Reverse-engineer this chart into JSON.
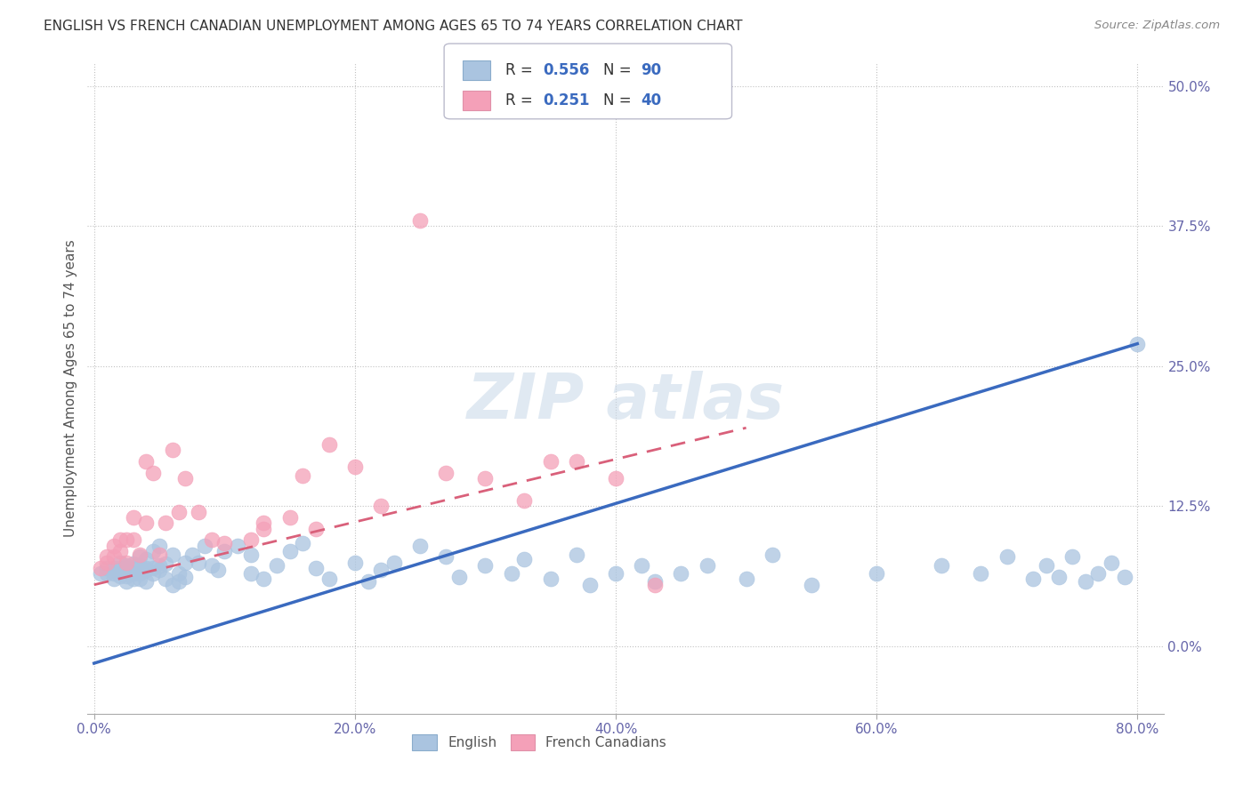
{
  "title": "ENGLISH VS FRENCH CANADIAN UNEMPLOYMENT AMONG AGES 65 TO 74 YEARS CORRELATION CHART",
  "source": "Source: ZipAtlas.com",
  "ylabel": "Unemployment Among Ages 65 to 74 years",
  "xlim": [
    -0.005,
    0.82
  ],
  "ylim": [
    -0.06,
    0.52
  ],
  "xticks": [
    0.0,
    0.2,
    0.4,
    0.6,
    0.8
  ],
  "xticklabels": [
    "0.0%",
    "20.0%",
    "40.0%",
    "60.0%",
    "80.0%"
  ],
  "yticks": [
    0.0,
    0.125,
    0.25,
    0.375,
    0.5
  ],
  "yticklabels": [
    "0.0%",
    "12.5%",
    "25.0%",
    "37.5%",
    "50.0%"
  ],
  "english_color": "#aac4e0",
  "french_color": "#f4a0b8",
  "english_line_color": "#3a6abf",
  "french_line_color": "#d9607a",
  "english_R": 0.556,
  "english_N": 90,
  "french_R": 0.251,
  "french_N": 40,
  "legend_label_english": "English",
  "legend_label_french": "French Canadians",
  "eng_x": [
    0.005,
    0.01,
    0.01,
    0.015,
    0.015,
    0.015,
    0.02,
    0.02,
    0.02,
    0.02,
    0.025,
    0.025,
    0.025,
    0.025,
    0.025,
    0.03,
    0.03,
    0.03,
    0.03,
    0.035,
    0.035,
    0.035,
    0.035,
    0.04,
    0.04,
    0.04,
    0.04,
    0.045,
    0.045,
    0.045,
    0.05,
    0.05,
    0.05,
    0.055,
    0.055,
    0.06,
    0.06,
    0.065,
    0.065,
    0.07,
    0.07,
    0.075,
    0.08,
    0.085,
    0.09,
    0.095,
    0.1,
    0.11,
    0.12,
    0.12,
    0.13,
    0.14,
    0.15,
    0.16,
    0.17,
    0.18,
    0.2,
    0.21,
    0.22,
    0.23,
    0.25,
    0.27,
    0.28,
    0.3,
    0.32,
    0.33,
    0.35,
    0.37,
    0.38,
    0.4,
    0.42,
    0.43,
    0.45,
    0.47,
    0.5,
    0.52,
    0.55,
    0.6,
    0.65,
    0.68,
    0.7,
    0.72,
    0.73,
    0.74,
    0.75,
    0.76,
    0.77,
    0.78,
    0.79,
    0.8
  ],
  "eng_y": [
    0.065,
    0.065,
    0.07,
    0.065,
    0.07,
    0.06,
    0.067,
    0.07,
    0.063,
    0.075,
    0.068,
    0.063,
    0.072,
    0.07,
    0.058,
    0.07,
    0.074,
    0.065,
    0.06,
    0.072,
    0.065,
    0.08,
    0.06,
    0.07,
    0.068,
    0.078,
    0.058,
    0.07,
    0.065,
    0.085,
    0.072,
    0.068,
    0.09,
    0.074,
    0.06,
    0.055,
    0.082,
    0.065,
    0.058,
    0.075,
    0.062,
    0.082,
    0.075,
    0.09,
    0.072,
    0.068,
    0.085,
    0.09,
    0.065,
    0.082,
    0.06,
    0.072,
    0.085,
    0.092,
    0.07,
    0.06,
    0.075,
    0.058,
    0.068,
    0.075,
    0.09,
    0.08,
    0.062,
    0.072,
    0.065,
    0.078,
    0.06,
    0.082,
    0.055,
    0.065,
    0.072,
    0.058,
    0.065,
    0.072,
    0.06,
    0.082,
    0.055,
    0.065,
    0.072,
    0.065,
    0.08,
    0.06,
    0.072,
    0.062,
    0.08,
    0.058,
    0.065,
    0.075,
    0.062,
    0.27
  ],
  "frc_x": [
    0.005,
    0.01,
    0.01,
    0.015,
    0.015,
    0.02,
    0.02,
    0.025,
    0.025,
    0.03,
    0.03,
    0.035,
    0.04,
    0.04,
    0.045,
    0.05,
    0.055,
    0.06,
    0.065,
    0.07,
    0.08,
    0.09,
    0.1,
    0.12,
    0.13,
    0.15,
    0.17,
    0.18,
    0.2,
    0.22,
    0.25,
    0.27,
    0.3,
    0.33,
    0.35,
    0.37,
    0.4,
    0.43,
    0.13,
    0.16
  ],
  "frc_y": [
    0.07,
    0.075,
    0.08,
    0.08,
    0.09,
    0.085,
    0.095,
    0.095,
    0.075,
    0.095,
    0.115,
    0.082,
    0.165,
    0.11,
    0.155,
    0.082,
    0.11,
    0.175,
    0.12,
    0.15,
    0.12,
    0.095,
    0.092,
    0.095,
    0.105,
    0.115,
    0.105,
    0.18,
    0.16,
    0.125,
    0.38,
    0.155,
    0.15,
    0.13,
    0.165,
    0.165,
    0.15,
    0.055,
    0.11,
    0.152
  ],
  "eng_line_x0": 0.0,
  "eng_line_x1": 0.8,
  "eng_line_y0": -0.015,
  "eng_line_y1": 0.27,
  "frc_line_x0": 0.0,
  "frc_line_x1": 0.5,
  "frc_line_y0": 0.055,
  "frc_line_y1": 0.195
}
